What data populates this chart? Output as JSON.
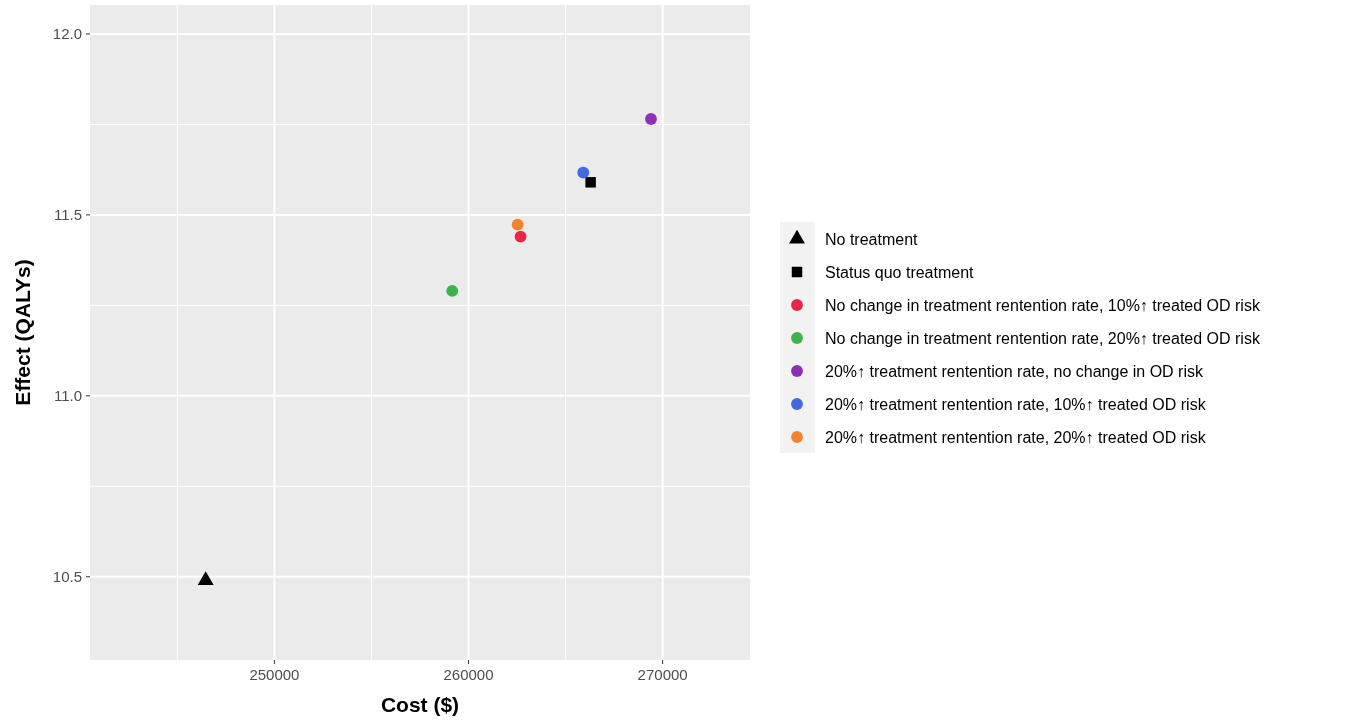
{
  "chart_data": {
    "type": "scatter",
    "xlabel": "Cost ($)",
    "ylabel": "Effect (QALYs)",
    "xlim": [
      240500,
      274500
    ],
    "xticks": [
      250000,
      260000,
      270000
    ],
    "ylim": [
      10.27,
      12.08
    ],
    "yticks": [
      {
        "value": 10.5,
        "label": "10.5"
      },
      {
        "value": 11,
        "label": "11.0"
      },
      {
        "value": 11.5,
        "label": "11.5"
      },
      {
        "value": 12,
        "label": "12.0"
      }
    ],
    "grid": true,
    "legend": "right",
    "marker": "circle",
    "series": [
      {
        "name": "No treatment",
        "color": "#000000",
        "marker": "triangle",
        "x": [
          246460
        ],
        "values": [
          10.49
        ]
      },
      {
        "name": "Status quo treatment",
        "color": "#000000",
        "marker": "square",
        "x": [
          266290
        ],
        "values": [
          11.59
        ]
      },
      {
        "name": "No change in treatment rentention rate, 10%↑ treated OD risk",
        "color": "#e8264c",
        "x": [
          262680
        ],
        "values": [
          11.44
        ]
      },
      {
        "name": "No change in treatment rentention rate, 20%↑ treated OD risk",
        "color": "#3cb44b",
        "x": [
          259160
        ],
        "values": [
          11.29
        ]
      },
      {
        "name": "20%↑ treatment rentention rate, no change in OD risk",
        "color": "#8e2fb8",
        "x": [
          269400
        ],
        "values": [
          11.765
        ]
      },
      {
        "name": "20%↑ treatment rentention rate, 10%↑ treated OD risk",
        "color": "#4169e1",
        "x": [
          265910
        ],
        "values": [
          11.617
        ]
      },
      {
        "name": "20%↑ treatment rentention rate, 20%↑ treated OD risk",
        "color": "#f5822f",
        "x": [
          262530
        ],
        "values": [
          11.473
        ]
      }
    ]
  }
}
